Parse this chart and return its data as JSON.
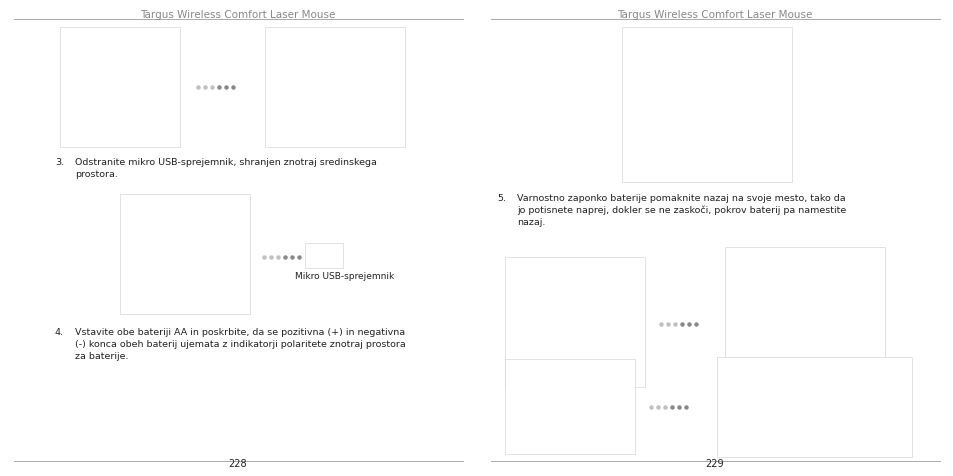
{
  "background_color": "#ffffff",
  "fig_width": 9.54,
  "fig_height": 4.77,
  "left_title": "Targus Wireless Comfort Laser Mouse",
  "right_title": "Targus Wireless Comfort Laser Mouse",
  "left_page": "228",
  "right_page": "229",
  "left_text3_num": "3.",
  "left_text3_body": "Odstranite mikro USB-sprejemnik, shranjen znotraj sredinskega\nprostora.",
  "left_text4_num": "4.",
  "left_text4_body": "Vstavite obe bateriji AA in poskrbite, da se pozitivna (+) in negativna\n(-) konca obeh baterij ujemata z indikatorji polaritete znotraj prostora\nza baterije.",
  "left_caption": "Mikro USB-sprejemnik",
  "right_text5_num": "5.",
  "right_text5_body": "Varnostno zaponko baterije pomaknite nazaj na svoje mesto, tako da\njo potisnete naprej, dokler se ne zaskoči, pokrov baterij pa namestite\nnazaj.",
  "divider_color": "#000000",
  "text_color": "#222222",
  "title_color": "#888888",
  "title_fontsize": 7.5,
  "body_fontsize": 6.8,
  "caption_fontsize": 6.5,
  "page_fontsize": 7.0,
  "dot_color_light": "#c0c0c0",
  "dot_color_dark": "#888888"
}
